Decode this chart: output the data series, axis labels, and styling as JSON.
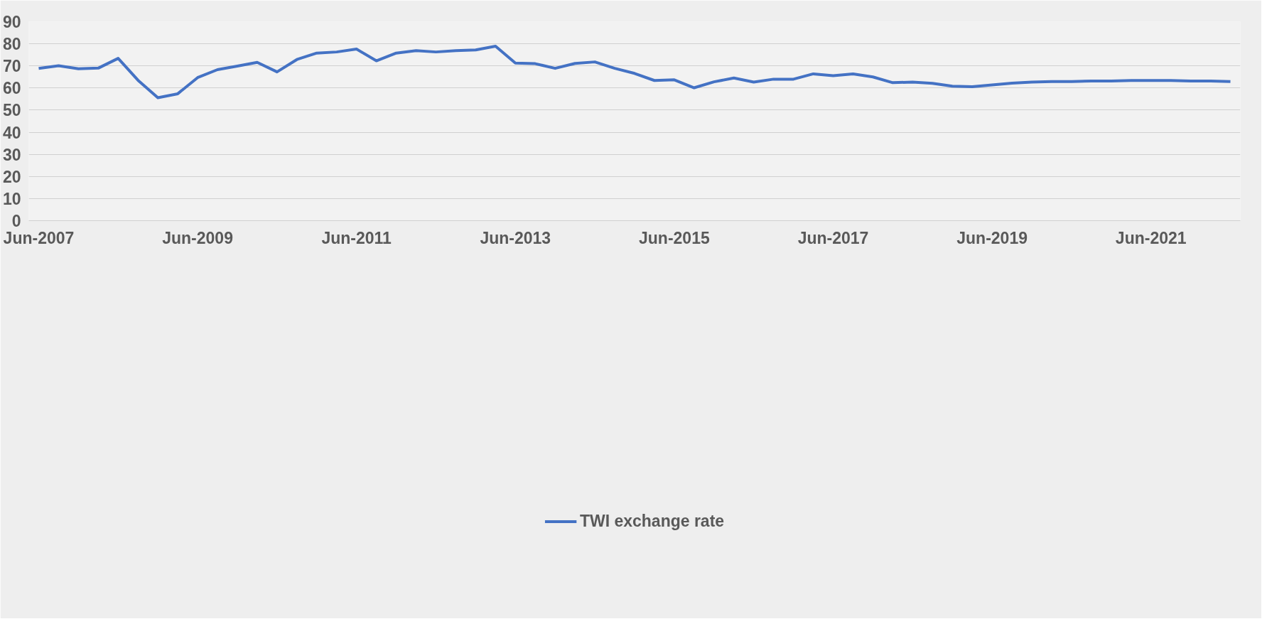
{
  "chart_data": {
    "type": "line",
    "categories": [
      "Jun-2007",
      null,
      null,
      null,
      null,
      null,
      null,
      null,
      "Jun-2009",
      null,
      null,
      null,
      null,
      null,
      null,
      null,
      "Jun-2011",
      null,
      null,
      null,
      null,
      null,
      null,
      null,
      "Jun-2013",
      null,
      null,
      null,
      null,
      null,
      null,
      null,
      "Jun-2015",
      null,
      null,
      null,
      null,
      null,
      null,
      null,
      "Jun-2017",
      null,
      null,
      null,
      null,
      null,
      null,
      null,
      "Jun-2019",
      null,
      null,
      null,
      null,
      null,
      null,
      null,
      "Jun-2021",
      null,
      null,
      null,
      null
    ],
    "series": [
      {
        "name": "TWI exchange rate",
        "color": "#4472c4",
        "values": [
          68.9,
          70.1,
          68.7,
          69.0,
          73.4,
          63.5,
          55.6,
          57.4,
          64.7,
          68.3,
          69.9,
          71.6,
          67.3,
          72.9,
          75.8,
          76.3,
          77.6,
          72.3,
          75.8,
          76.9,
          76.3,
          76.9,
          77.2,
          78.9,
          71.3,
          71.0,
          68.9,
          71.1,
          71.8,
          68.9,
          66.6,
          63.4,
          63.7,
          60.1,
          62.8,
          64.5,
          62.7,
          64.0,
          64.0,
          66.4,
          65.6,
          66.4,
          65.0,
          62.4,
          62.7,
          62.1,
          60.8,
          60.6,
          61.4,
          62.2,
          62.7,
          62.9,
          62.9,
          63.2,
          63.2,
          63.4,
          63.4,
          63.4,
          63.2,
          63.2,
          62.9
        ]
      }
    ],
    "ylim": [
      0,
      90
    ],
    "yticks": [
      0,
      10,
      20,
      30,
      40,
      50,
      60,
      70,
      80,
      90
    ],
    "grid": "y",
    "legend": "bottom",
    "marker": "none",
    "line_style": "solid"
  }
}
